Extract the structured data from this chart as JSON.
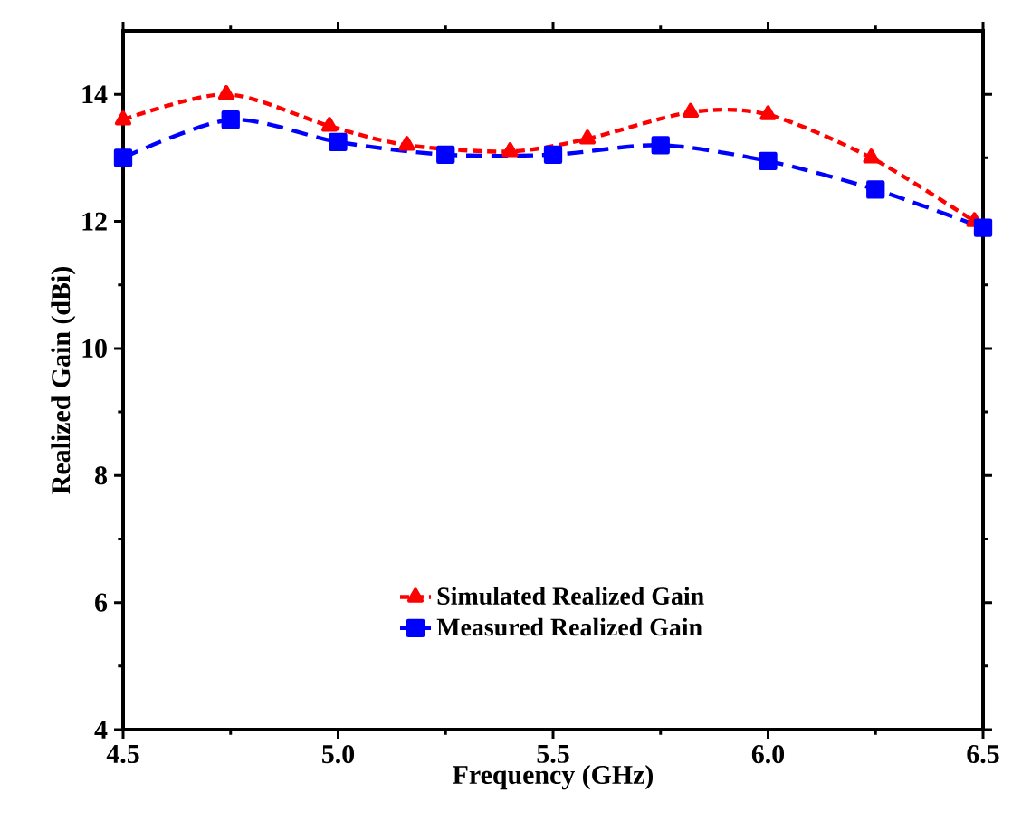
{
  "chart_data": {
    "type": "line",
    "xlabel": "Frequency (GHz)",
    "ylabel": "Realized Gain (dBi)",
    "xlim": [
      4.5,
      6.5
    ],
    "ylim": [
      4,
      15
    ],
    "xticks": [
      {
        "value": 4.5,
        "label": "4.5"
      },
      {
        "value": 5.0,
        "label": "5.0"
      },
      {
        "value": 5.5,
        "label": "5.5"
      },
      {
        "value": 6.0,
        "label": "6.0"
      },
      {
        "value": 6.5,
        "label": "6.5"
      }
    ],
    "yticks": [
      4,
      6,
      8,
      10,
      12,
      14
    ],
    "legend": "bottom",
    "grid": false,
    "line_style": "dashed",
    "series": [
      {
        "name": "Simulated Realized Gain",
        "color": "#ff0000",
        "marker": "triangle",
        "x": [
          4.5,
          4.74,
          4.98,
          5.16,
          5.4,
          5.58,
          5.82,
          6.0,
          6.24,
          6.48
        ],
        "values": [
          13.6,
          14.0,
          13.5,
          13.2,
          13.1,
          13.3,
          13.72,
          13.68,
          13.0,
          12.0
        ]
      },
      {
        "name": "Measured Realized Gain",
        "color": "#0000ff",
        "marker": "square",
        "x": [
          4.5,
          4.75,
          5.0,
          5.25,
          5.5,
          5.75,
          6.0,
          6.25,
          6.5
        ],
        "values": [
          13.0,
          13.6,
          13.25,
          13.05,
          13.05,
          13.2,
          12.95,
          12.5,
          11.9
        ]
      }
    ]
  }
}
